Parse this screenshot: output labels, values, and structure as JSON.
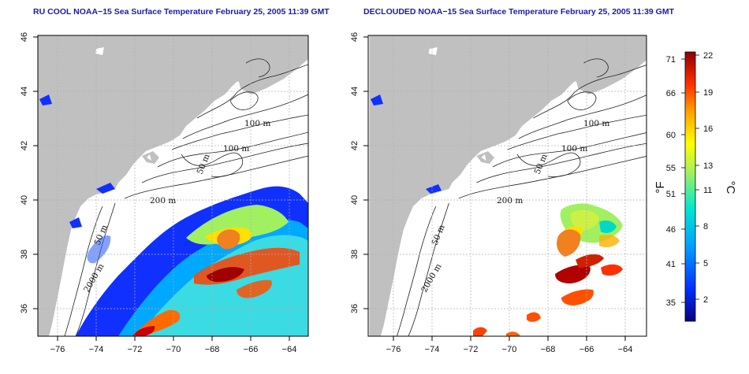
{
  "panels": [
    {
      "title": "RU COOL NOAA−15 Sea Surface Temperature February 25, 2005 11:39 GMT"
    },
    {
      "title": "DECLOUDED NOAA−15 Sea Surface Temperature February 25, 2005 11:39 GMT"
    }
  ],
  "axes": {
    "lon_ticks": [
      "−76",
      "−74",
      "−72",
      "−70",
      "−68",
      "−66",
      "−64"
    ],
    "lat_ticks": [
      "36",
      "38",
      "40",
      "42",
      "44",
      "46"
    ],
    "lon_range": [
      -77.2,
      -62.9
    ],
    "lat_range": [
      35.0,
      46.0
    ]
  },
  "contour_labels": [
    "100 m",
    "100 m",
    "50 m",
    "200 m",
    "50 m",
    "2000 m"
  ],
  "colorbar": {
    "fahrenheit_ticks": [
      "71",
      "66",
      "60",
      "55",
      "51",
      "46",
      "41",
      "35"
    ],
    "celsius_ticks": [
      "22",
      "19",
      "16",
      "13",
      "11",
      "8",
      "5",
      "2"
    ],
    "fahrenheit_label": "°F",
    "celsius_label": "°C",
    "range_celsius": [
      0,
      22
    ]
  },
  "colors": {
    "title": "#1a1ab0",
    "land": "#c0c0c0",
    "grid": "#b0b0b0"
  }
}
